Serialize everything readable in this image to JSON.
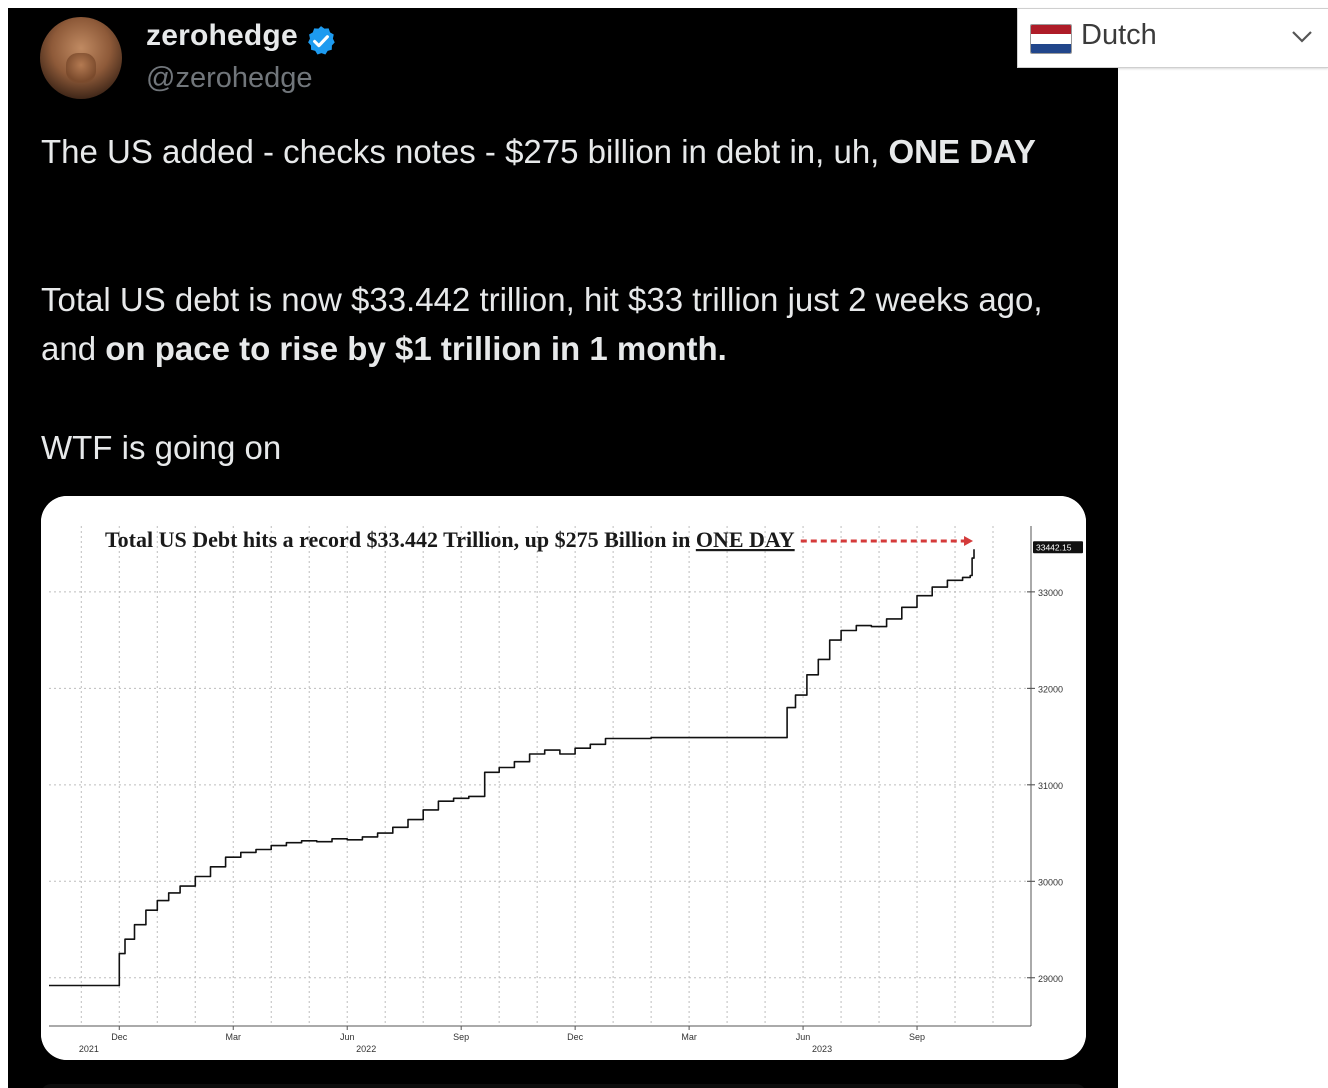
{
  "tweet": {
    "display_name": "zerohedge",
    "handle": "@zerohedge",
    "verified": true,
    "text": {
      "p1_a": "The US added - checks notes - $275 billion in debt in, uh, ",
      "p1_b": "ONE DAY",
      "p2_a": "Total US debt is now $33.442 trillion, hit $33 trillion just 2 weeks ago, and ",
      "p2_b": "on pace to rise by $1 trillion in 1 month.",
      "p3": "WTF is going on"
    }
  },
  "language_selector": {
    "selected": "Dutch",
    "flag_icon": "netherlands-flag-icon",
    "arrow_icon": "chevron-down-icon"
  },
  "chart_data": {
    "type": "line",
    "title_prefix": "Total US Debt hits a record $33.442 Trillion, up $275 Billion in ",
    "title_emph": "ONE DAY",
    "last_value_label": "33442.15",
    "y_ticks": [
      "33000",
      "32000",
      "31000",
      "30000",
      "29000"
    ],
    "y_tick_values": [
      33000,
      32000,
      31000,
      30000,
      29000
    ],
    "ylim": [
      28500,
      33600
    ],
    "x_ticks": [
      "Dec",
      "Mar",
      "Jun",
      "Sep",
      "Dec",
      "Mar",
      "Jun",
      "Sep"
    ],
    "x_tick_months": [
      0,
      3,
      6,
      9,
      12,
      15,
      18,
      21
    ],
    "year_labels": [
      "2021",
      "2022",
      "2023"
    ],
    "year_months": [
      -0.8,
      6.5,
      18.5
    ],
    "xlim_months": [
      -1.85,
      24.0
    ],
    "series": [
      {
        "x_months": [
          -1.85,
          -0.05,
          0.0,
          0.15,
          0.4,
          0.7,
          1.0,
          1.3,
          1.6,
          2.0,
          2.4,
          2.8,
          3.2,
          3.6,
          4.0,
          4.4,
          4.8,
          5.2,
          5.6,
          6.0,
          6.4,
          6.8,
          7.2,
          7.6,
          8.0,
          8.4,
          8.8,
          9.2,
          9.6,
          9.62,
          10.0,
          10.4,
          10.8,
          11.2,
          11.6,
          12.0,
          12.4,
          12.8,
          13.0,
          13.4,
          14.0,
          15.0,
          16.0,
          17.0,
          17.55,
          17.58,
          17.8,
          18.1,
          18.4,
          18.7,
          19.0,
          19.4,
          19.8,
          20.2,
          20.6,
          21.0,
          21.4,
          21.8,
          22.2,
          22.4,
          22.45,
          22.5
        ],
        "values": [
          28920,
          28920,
          29250,
          29400,
          29550,
          29700,
          29800,
          29880,
          29950,
          30050,
          30150,
          30250,
          30300,
          30330,
          30370,
          30400,
          30420,
          30410,
          30440,
          30430,
          30460,
          30500,
          30560,
          30640,
          30740,
          30830,
          30860,
          30880,
          30880,
          31130,
          31180,
          31240,
          31320,
          31360,
          31320,
          31380,
          31420,
          31480,
          31480,
          31480,
          31490,
          31490,
          31490,
          31490,
          31490,
          31800,
          31930,
          32140,
          32300,
          32500,
          32600,
          32650,
          32640,
          32720,
          32840,
          32960,
          33050,
          33120,
          33150,
          33170,
          33350,
          33442
        ]
      }
    ],
    "colors": {
      "line": "#111111",
      "arrow": "#d43a3a",
      "grid": "#bdbdbd"
    }
  }
}
